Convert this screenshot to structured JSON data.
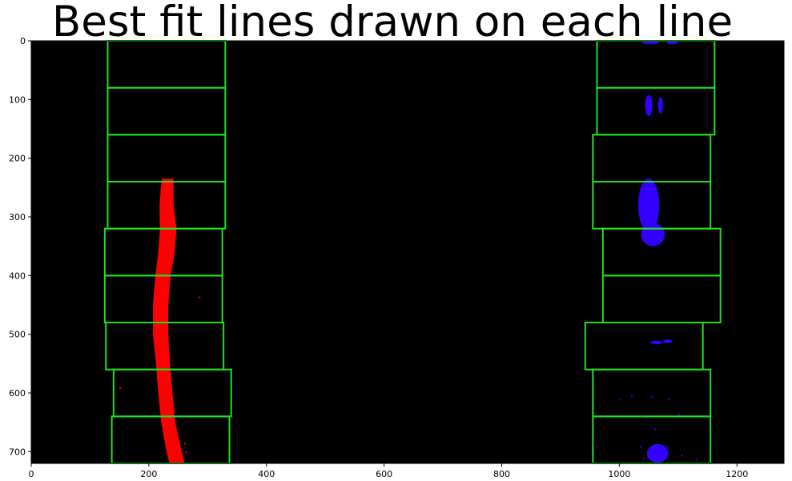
{
  "chart_data": {
    "type": "scatter",
    "title": "Best fit lines drawn on each line",
    "xlabel": "",
    "ylabel": "",
    "xlim": [
      0,
      1280
    ],
    "ylim": [
      720,
      0
    ],
    "y_axis_inverted": true,
    "grid": false,
    "background_color": "#000000",
    "x_ticks": [
      0,
      200,
      400,
      600,
      800,
      1000,
      1200
    ],
    "y_ticks": [
      0,
      100,
      200,
      300,
      400,
      500,
      600,
      700
    ],
    "window_color": "#22e022",
    "left_lane_color": "#ff0000",
    "right_lane_color": "#3300ff",
    "left_windows": [
      {
        "x0": 130,
        "x1": 330,
        "y0": 0,
        "y1": 80
      },
      {
        "x0": 130,
        "x1": 330,
        "y0": 80,
        "y1": 160
      },
      {
        "x0": 130,
        "x1": 330,
        "y0": 160,
        "y1": 240
      },
      {
        "x0": 130,
        "x1": 330,
        "y0": 240,
        "y1": 320
      },
      {
        "x0": 125,
        "x1": 325,
        "y0": 320,
        "y1": 400
      },
      {
        "x0": 125,
        "x1": 325,
        "y0": 400,
        "y1": 480
      },
      {
        "x0": 127,
        "x1": 327,
        "y0": 480,
        "y1": 560
      },
      {
        "x0": 140,
        "x1": 340,
        "y0": 560,
        "y1": 640
      },
      {
        "x0": 137,
        "x1": 337,
        "y0": 640,
        "y1": 720
      }
    ],
    "right_windows": [
      {
        "x0": 962,
        "x1": 1162,
        "y0": 0,
        "y1": 80
      },
      {
        "x0": 962,
        "x1": 1162,
        "y0": 80,
        "y1": 160
      },
      {
        "x0": 955,
        "x1": 1155,
        "y0": 160,
        "y1": 240
      },
      {
        "x0": 955,
        "x1": 1155,
        "y0": 240,
        "y1": 320
      },
      {
        "x0": 972,
        "x1": 1172,
        "y0": 320,
        "y1": 400
      },
      {
        "x0": 972,
        "x1": 1172,
        "y0": 400,
        "y1": 480
      },
      {
        "x0": 942,
        "x1": 1142,
        "y0": 480,
        "y1": 560
      },
      {
        "x0": 955,
        "x1": 1155,
        "y0": 560,
        "y1": 640
      },
      {
        "x0": 955,
        "x1": 1155,
        "y0": 640,
        "y1": 720
      }
    ],
    "left_lane_path": [
      {
        "x": 232,
        "y": 235,
        "half_width": 10
      },
      {
        "x": 230,
        "y": 280,
        "half_width": 12
      },
      {
        "x": 233,
        "y": 320,
        "half_width": 14
      },
      {
        "x": 230,
        "y": 360,
        "half_width": 14
      },
      {
        "x": 224,
        "y": 400,
        "half_width": 13
      },
      {
        "x": 220,
        "y": 450,
        "half_width": 13
      },
      {
        "x": 220,
        "y": 500,
        "half_width": 13
      },
      {
        "x": 224,
        "y": 550,
        "half_width": 12
      },
      {
        "x": 228,
        "y": 600,
        "half_width": 12
      },
      {
        "x": 233,
        "y": 650,
        "half_width": 12
      },
      {
        "x": 243,
        "y": 700,
        "half_width": 13
      },
      {
        "x": 248,
        "y": 720,
        "half_width": 13
      }
    ],
    "left_lane_specks": [
      {
        "x": 285,
        "y": 436
      },
      {
        "x": 260,
        "y": 685
      },
      {
        "x": 150,
        "y": 590
      },
      {
        "x": 262,
        "y": 700
      }
    ],
    "right_lane_blobs": [
      {
        "cx": 1053,
        "cy": 3,
        "rx": 14,
        "ry": 3
      },
      {
        "cx": 1090,
        "cy": 3,
        "rx": 9,
        "ry": 3
      },
      {
        "cx": 1050,
        "cy": 110,
        "rx": 6,
        "ry": 18
      },
      {
        "cx": 1070,
        "cy": 110,
        "rx": 4,
        "ry": 14
      },
      {
        "cx": 1050,
        "cy": 280,
        "rx": 18,
        "ry": 45
      },
      {
        "cx": 1057,
        "cy": 330,
        "rx": 20,
        "ry": 20
      },
      {
        "cx": 1063,
        "cy": 514,
        "rx": 10,
        "ry": 3
      },
      {
        "cx": 1082,
        "cy": 512,
        "rx": 8,
        "ry": 3
      },
      {
        "cx": 1065,
        "cy": 703,
        "rx": 18,
        "ry": 16
      }
    ],
    "right_lane_specks": [
      {
        "x": 1020,
        "y": 605
      },
      {
        "x": 1055,
        "y": 605
      },
      {
        "x": 1083,
        "y": 610
      },
      {
        "x": 1000,
        "y": 610
      },
      {
        "x": 1100,
        "y": 635
      },
      {
        "x": 1060,
        "y": 660
      },
      {
        "x": 1035,
        "y": 690
      },
      {
        "x": 1080,
        "y": 690
      },
      {
        "x": 1105,
        "y": 705
      },
      {
        "x": 1040,
        "y": 710
      },
      {
        "x": 1130,
        "y": 712
      },
      {
        "x": 1045,
        "y": 640
      },
      {
        "x": 960,
        "y": 690
      }
    ]
  }
}
